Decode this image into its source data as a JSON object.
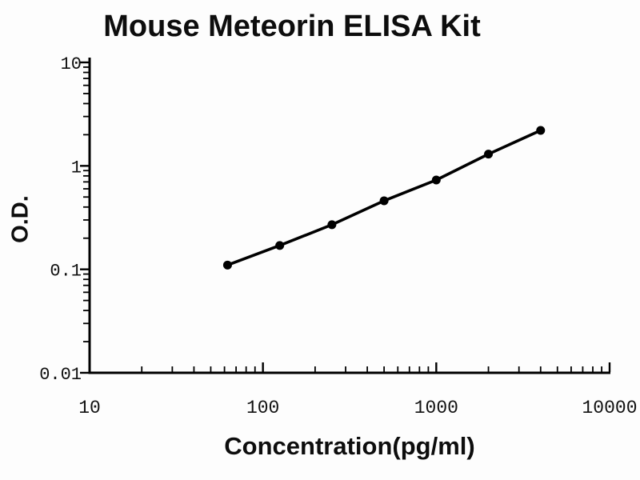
{
  "figure": {
    "background_color": "#fdfdfd",
    "ink_color": "#000000"
  },
  "chart_data": {
    "type": "line",
    "title": "Mouse Meteorin ELISA Kit",
    "xlabel": "Concentration(pg/ml)",
    "ylabel": "O.D.",
    "x_scale": "log",
    "y_scale": "log",
    "xlim": [
      10,
      10000
    ],
    "ylim": [
      0.01,
      10
    ],
    "x_ticks": [
      10,
      100,
      1000,
      10000
    ],
    "x_tick_labels": [
      "10",
      "100",
      "1000",
      "10000"
    ],
    "y_ticks": [
      0.01,
      0.1,
      1,
      10
    ],
    "y_tick_labels": [
      "0.01",
      "0.1",
      "1",
      "10"
    ],
    "grid": false,
    "legend": "none",
    "series": [
      {
        "name": "standard-curve",
        "marker": "filled-circle",
        "color": "#000000",
        "x": [
          62.5,
          125,
          250,
          500,
          1000,
          2000,
          4000
        ],
        "y": [
          0.11,
          0.17,
          0.27,
          0.46,
          0.73,
          1.3,
          2.2
        ]
      }
    ]
  }
}
